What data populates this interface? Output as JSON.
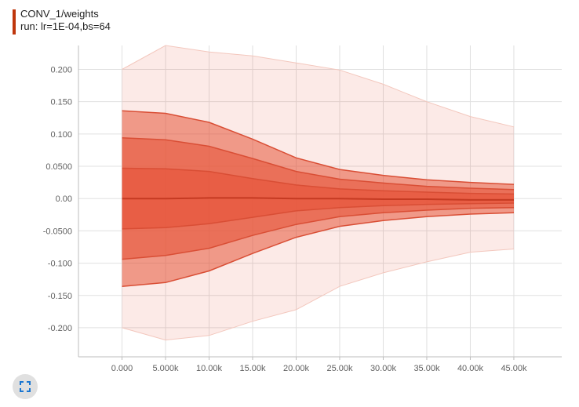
{
  "card": {
    "title": "CONV_1/weights",
    "run_label": "run: lr=1E-04,bs=64",
    "accent_color": "#bf360c"
  },
  "controls": {
    "fullscreen_icon": "fullscreen-icon"
  },
  "chart_data": {
    "type": "area",
    "subtype": "distribution",
    "title": "CONV_1/weights",
    "xlabel": "",
    "ylabel": "",
    "xlim": [
      -5000,
      50500
    ],
    "ylim": [
      -0.245,
      0.237
    ],
    "x_ticks": [
      "0.000",
      "5.000k",
      "10.00k",
      "15.00k",
      "20.00k",
      "25.00k",
      "30.00k",
      "35.00k",
      "40.00k",
      "45.00k"
    ],
    "y_ticks": [
      "0.200",
      "0.150",
      "0.100",
      "0.0500",
      "0.00",
      "-0.0500",
      "-0.100",
      "-0.150",
      "-0.200"
    ],
    "y_tick_values": [
      0.2,
      0.15,
      0.1,
      0.05,
      0,
      -0.05,
      -0.1,
      -0.15,
      -0.2
    ],
    "grid": true,
    "color": "#e6553a",
    "x": [
      0,
      5000,
      10000,
      15000,
      20000,
      25000,
      30000,
      35000,
      40000,
      45000
    ],
    "bands": [
      {
        "upper": [
          0.2,
          0.237,
          0.227,
          0.221,
          0.21,
          0.199,
          0.177,
          0.15,
          0.127,
          0.111
        ],
        "lower": [
          -0.2,
          -0.219,
          -0.212,
          -0.19,
          -0.172,
          -0.136,
          -0.115,
          -0.098,
          -0.083,
          -0.078
        ],
        "opacity": 0.12
      },
      {
        "upper": [
          0.136,
          0.132,
          0.118,
          0.092,
          0.063,
          0.045,
          0.036,
          0.029,
          0.025,
          0.022
        ],
        "lower": [
          -0.136,
          -0.13,
          -0.112,
          -0.085,
          -0.06,
          -0.043,
          -0.034,
          -0.028,
          -0.024,
          -0.022
        ],
        "opacity": 0.55
      },
      {
        "upper": [
          0.094,
          0.091,
          0.081,
          0.062,
          0.042,
          0.03,
          0.024,
          0.019,
          0.016,
          0.014
        ],
        "lower": [
          -0.094,
          -0.088,
          -0.077,
          -0.057,
          -0.04,
          -0.028,
          -0.022,
          -0.018,
          -0.015,
          -0.014
        ],
        "opacity": 0.6
      },
      {
        "upper": [
          0.047,
          0.046,
          0.042,
          0.031,
          0.021,
          0.015,
          0.012,
          0.01,
          0.008,
          0.007
        ],
        "lower": [
          -0.047,
          -0.045,
          -0.039,
          -0.029,
          -0.019,
          -0.014,
          -0.011,
          -0.009,
          -0.008,
          -0.007
        ],
        "opacity": 0.65
      }
    ],
    "median": [
      0.0,
      0.0,
      0.001,
      0.001,
      0.0,
      0.0,
      -0.001,
      -0.001,
      -0.002,
      -0.002
    ]
  }
}
